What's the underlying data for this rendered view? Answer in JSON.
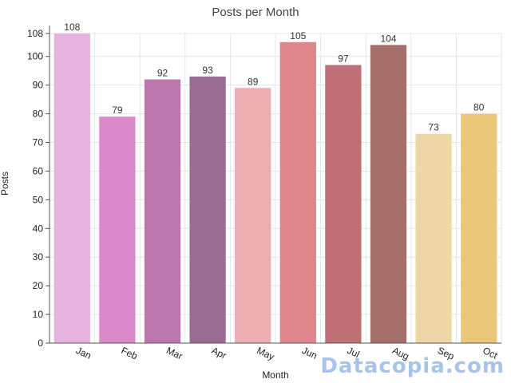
{
  "chart_data": {
    "type": "bar",
    "title": "Posts per Month",
    "xlabel": "Month",
    "ylabel": "Posts",
    "categories": [
      "Jan",
      "Feb",
      "Mar",
      "Apr",
      "May",
      "Jun",
      "Jul",
      "Aug",
      "Sep",
      "Oct"
    ],
    "values": [
      108,
      79,
      92,
      93,
      89,
      105,
      97,
      104,
      73,
      80
    ],
    "colors": [
      "#e6b3e0",
      "#da8acb",
      "#bc78ae",
      "#9a6c93",
      "#edaeb2",
      "#df858c",
      "#bf6f75",
      "#a46e6a",
      "#efd8a8",
      "#ebc77a"
    ],
    "ylim": [
      0,
      108
    ],
    "yticks": [
      0,
      10,
      20,
      30,
      40,
      50,
      60,
      70,
      80,
      90,
      100,
      108
    ],
    "grid": true,
    "data_labels": true
  },
  "watermark": "Datacopia.com"
}
